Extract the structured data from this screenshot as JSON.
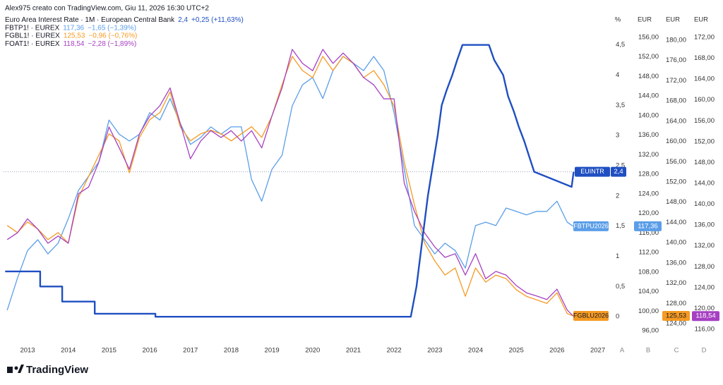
{
  "chart_data": {
    "type": "line",
    "title": "Alex975 creato con TradingView.com, Giu 11, 2026 16:30 UTC+2",
    "logo": "TradingView",
    "axis_titles": [
      "%",
      "EUR",
      "EUR",
      "EUR"
    ],
    "axis_letters": [
      "A",
      "B",
      "C",
      "D"
    ],
    "xlim": [
      2012.41,
      2027.32
    ],
    "xticks": [
      2013,
      2014,
      2015,
      2016,
      2017,
      2018,
      2019,
      2020,
      2021,
      2022,
      2023,
      2024,
      2025,
      2026,
      2027
    ],
    "ylim": [
      -0.36,
      5.01
    ],
    "yticks": [
      0,
      {
        "value": 0.5,
        "label": "0,5"
      },
      1,
      {
        "value": 1.5,
        "label": "1,5"
      },
      2,
      {
        "value": 2.5,
        "label": "2,5"
      },
      3,
      {
        "value": 3.5,
        "label": "3,5"
      },
      4,
      {
        "value": 4.5,
        "label": "4,5"
      }
    ],
    "y2lim": [
      94.41,
      160.76
    ],
    "y2ticks": [
      {
        "value": 96,
        "label": "96,00"
      },
      {
        "value": 100,
        "label": "100,00"
      },
      {
        "value": 104,
        "label": "104,00"
      },
      {
        "value": 108,
        "label": "108,00"
      },
      {
        "value": 112,
        "label": "112,00"
      },
      {
        "value": 116,
        "label": "116,00"
      },
      {
        "value": 120,
        "label": "120,00"
      },
      {
        "value": 124,
        "label": "124,00"
      },
      {
        "value": 128,
        "label": "128,00"
      },
      {
        "value": 132,
        "label": "132,00"
      },
      {
        "value": 136,
        "label": "136,00"
      },
      {
        "value": 140,
        "label": "140,00"
      },
      {
        "value": 144,
        "label": "144,00"
      },
      {
        "value": 148,
        "label": "148,00"
      },
      {
        "value": 152,
        "label": "152,00"
      },
      {
        "value": 156,
        "label": "156,00"
      }
    ],
    "y3lim": [
      121.07,
      185.15
    ],
    "y3ticks": [
      {
        "value": 124,
        "label": "124,00"
      },
      {
        "value": 128,
        "label": "128,00"
      },
      {
        "value": 132,
        "label": "132,00"
      },
      {
        "value": 136,
        "label": "136,00"
      },
      {
        "value": 140,
        "label": "140,00"
      },
      {
        "value": 144,
        "label": "144,00"
      },
      {
        "value": 148,
        "label": "148,00"
      },
      {
        "value": 152,
        "label": "152,00"
      },
      {
        "value": 156,
        "label": "156,00"
      },
      {
        "value": 160,
        "label": "160,00"
      },
      {
        "value": 164,
        "label": "164,00"
      },
      {
        "value": 168,
        "label": "168,00"
      },
      {
        "value": 172,
        "label": "172,00"
      },
      {
        "value": 176,
        "label": "176,00"
      },
      {
        "value": 180,
        "label": "180,00"
      }
    ],
    "y4lim": [
      114.24,
      176.46
    ],
    "y4ticks": [
      {
        "value": 116,
        "label": "116,00"
      },
      {
        "value": 120,
        "label": "120,00"
      },
      {
        "value": 124,
        "label": "124,00"
      },
      {
        "value": 128,
        "label": "128,00"
      },
      {
        "value": 132,
        "label": "132,00"
      },
      {
        "value": 136,
        "label": "136,00"
      },
      {
        "value": 140,
        "label": "140,00"
      },
      {
        "value": 144,
        "label": "144,00"
      },
      {
        "value": 148,
        "label": "148,00"
      },
      {
        "value": 152,
        "label": "152,00"
      },
      {
        "value": 156,
        "label": "156,00"
      },
      {
        "value": 160,
        "label": "160,00"
      },
      {
        "value": 164,
        "label": "164,00"
      },
      {
        "value": 168,
        "label": "168,00"
      },
      {
        "value": 172,
        "label": "172,00"
      }
    ],
    "series": [
      {
        "name": "Euro Area Interest Rate · 1M · European Central Bank",
        "color": "#1f4fc1",
        "axis": "y",
        "last_label": "2,4",
        "change": "+0,25 (+11,63%)",
        "tag": "EUINTR",
        "x": [
          2012.45,
          2013.31,
          2013.31,
          2013.85,
          2013.85,
          2014.65,
          2014.65,
          2016.14,
          2016.14,
          2022.41,
          2022.55,
          2022.69,
          2022.83,
          2022.95,
          2023.07,
          2023.17,
          2023.29,
          2023.43,
          2023.55,
          2023.68,
          2024.33,
          2024.46,
          2024.68,
          2024.8,
          2024.94,
          2025.06,
          2025.2,
          2025.32,
          2025.44,
          2026.36,
          2026.41
        ],
        "values": [
          0.75,
          0.75,
          0.5,
          0.5,
          0.25,
          0.25,
          0.05,
          0.05,
          0,
          0,
          0.5,
          1.25,
          2,
          2.5,
          3,
          3.5,
          3.75,
          4,
          4.25,
          4.5,
          4.5,
          4.25,
          4,
          3.65,
          3.4,
          3.15,
          2.9,
          2.65,
          2.4,
          2.15,
          2.4
        ]
      },
      {
        "name": "FBTP1! · EUREX",
        "color": "#5b9ee8",
        "axis": "y2",
        "last_label": "117,36",
        "change": "−1,65 (−1,39%)",
        "tag": "FBTPU2026",
        "x": [
          2012.5,
          2012.75,
          2013,
          2013.25,
          2013.5,
          2013.75,
          2014,
          2014.25,
          2014.5,
          2014.75,
          2015,
          2015.25,
          2015.5,
          2015.75,
          2016,
          2016.25,
          2016.5,
          2016.75,
          2017,
          2017.25,
          2017.5,
          2017.75,
          2018,
          2018.25,
          2018.5,
          2018.75,
          2019,
          2019.25,
          2019.5,
          2019.75,
          2020,
          2020.25,
          2020.5,
          2020.75,
          2021,
          2021.25,
          2021.5,
          2021.75,
          2022,
          2022.25,
          2022.5,
          2022.75,
          2023,
          2023.25,
          2023.5,
          2023.75,
          2024,
          2024.25,
          2024.5,
          2024.75,
          2025,
          2025.25,
          2025.5,
          2025.75,
          2026,
          2026.25,
          2026.4
        ],
        "values": [
          100.2,
          106.7,
          112.4,
          114.6,
          111.7,
          113.9,
          118.9,
          124.7,
          127.6,
          130.5,
          139.1,
          136.2,
          134.8,
          136.2,
          140.6,
          139.1,
          143.5,
          138.4,
          134.1,
          135.5,
          137.7,
          136.2,
          137.7,
          137.7,
          126.9,
          122.5,
          129.0,
          131.9,
          142.0,
          146.3,
          147.8,
          143.5,
          149.2,
          152.1,
          150.7,
          149.2,
          152.1,
          149.2,
          140.6,
          129.0,
          117.5,
          114.6,
          111.7,
          113.9,
          112.4,
          108.8,
          117.5,
          118.2,
          117.5,
          121.1,
          120.4,
          119.7,
          120.4,
          120.4,
          122.5,
          118.2,
          117.36
        ]
      },
      {
        "name": "FGBL1! · EUREX",
        "color": "#f59a23",
        "axis": "y3",
        "last_label": "125,53",
        "change": "−0,96 (−0,76%)",
        "tag": "FGBLU2026",
        "x": [
          2012.5,
          2012.75,
          2013,
          2013.25,
          2013.5,
          2013.75,
          2014,
          2014.25,
          2014.5,
          2014.75,
          2015,
          2015.25,
          2015.5,
          2015.75,
          2016,
          2016.25,
          2016.5,
          2016.75,
          2017,
          2017.25,
          2017.5,
          2017.75,
          2018,
          2018.25,
          2018.5,
          2018.75,
          2019,
          2019.25,
          2019.5,
          2019.75,
          2020,
          2020.25,
          2020.5,
          2020.75,
          2021,
          2021.25,
          2021.5,
          2021.75,
          2022,
          2022.25,
          2022.5,
          2022.75,
          2023,
          2023.25,
          2023.5,
          2023.75,
          2024,
          2024.25,
          2024.5,
          2024.75,
          2025,
          2025.25,
          2025.5,
          2025.75,
          2026,
          2026.25,
          2026.4
        ],
        "values": [
          143.4,
          142.0,
          144.1,
          142.7,
          140.6,
          142.0,
          139.9,
          148.9,
          153.1,
          157.3,
          161.5,
          160.1,
          153.8,
          160.8,
          164.3,
          165.7,
          169.8,
          162.9,
          160.1,
          161.5,
          162.2,
          161.5,
          160.1,
          161.5,
          162.9,
          160.8,
          165.0,
          171.2,
          176.8,
          174.0,
          172.6,
          176.8,
          174.0,
          176.8,
          175.4,
          172.6,
          174.0,
          171.2,
          167.0,
          155.9,
          147.5,
          139.9,
          136.4,
          133.6,
          135.0,
          129.4,
          135.0,
          132.2,
          133.6,
          132.9,
          130.7,
          129.4,
          128.7,
          128.0,
          130.1,
          126.0,
          125.53
        ]
      },
      {
        "name": "FOAT1! · EUREX",
        "color": "#a640c2",
        "axis": "y4",
        "last_label": "118,54",
        "change": "−2,28 (−1,89%)",
        "x": [
          2012.5,
          2012.75,
          2013,
          2013.25,
          2013.5,
          2013.75,
          2014,
          2014.25,
          2014.5,
          2014.75,
          2015,
          2015.25,
          2015.5,
          2015.75,
          2016,
          2016.25,
          2016.5,
          2016.75,
          2017,
          2017.25,
          2017.5,
          2017.75,
          2018,
          2018.25,
          2018.5,
          2018.75,
          2019,
          2019.25,
          2019.5,
          2019.75,
          2020,
          2020.25,
          2020.5,
          2020.75,
          2021,
          2021.25,
          2021.5,
          2021.75,
          2022,
          2022.25,
          2022.5,
          2022.75,
          2023,
          2023.25,
          2023.5,
          2023.75,
          2024,
          2024.25,
          2024.5,
          2024.75,
          2025,
          2025.25,
          2025.5,
          2025.75,
          2026,
          2026.25,
          2026.4
        ],
        "values": [
          133.2,
          134.5,
          137.2,
          135.2,
          132.5,
          133.9,
          132.5,
          142.0,
          143.3,
          148.1,
          154.8,
          150.8,
          146.7,
          153.5,
          156.9,
          158.9,
          162.3,
          155.5,
          148.7,
          152.1,
          154.1,
          152.8,
          154.1,
          152.1,
          154.1,
          150.8,
          156.9,
          162.3,
          169.7,
          167.0,
          165.6,
          169.7,
          167.0,
          169.0,
          167.0,
          164.3,
          162.9,
          160.2,
          160.2,
          144.0,
          138.6,
          134.5,
          131.8,
          129.8,
          130.5,
          126.4,
          130.5,
          125.7,
          127.1,
          126.4,
          124.4,
          123.0,
          122.4,
          121.7,
          123.7,
          119.7,
          118.54
        ]
      }
    ]
  }
}
